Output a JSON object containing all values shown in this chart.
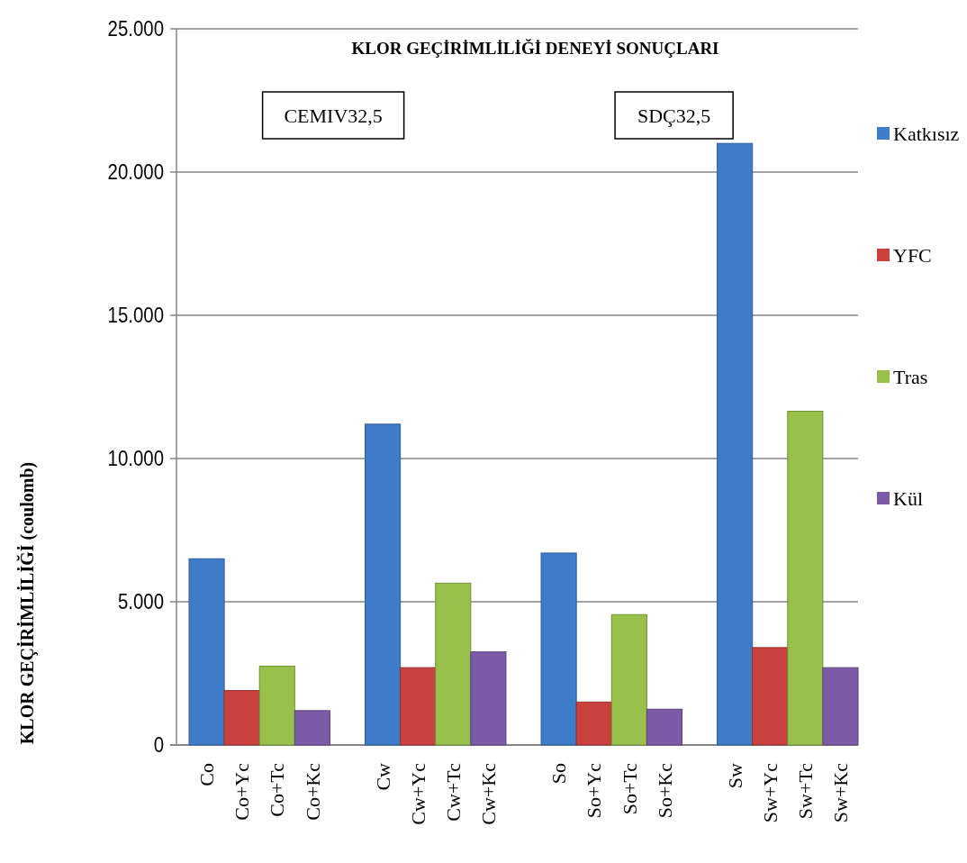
{
  "chart_data": {
    "type": "bar",
    "title": "KLOR GEÇİRİMLİLİĞİ DENEYİ SONUÇLARI",
    "ylabel": "KLOR GEÇİRİMLİLİĞİ (coulomb)",
    "annotations": [
      "CEMIV32,5",
      "SDÇ32,5"
    ],
    "categories": [
      "Co",
      "Co+Yc",
      "Co+Tc",
      "Co+Kc",
      null,
      "Cw",
      "Cw+Yc",
      "Cw+Tc",
      "Cw+Kc",
      null,
      "So",
      "So+Yc",
      "So+Tc",
      "So+Kc",
      null,
      "Sw",
      "Sw+Yc",
      "Sw+Tc",
      "Sw+Kc"
    ],
    "series": [
      {
        "name": "Katkısız",
        "color": "#3d7cc9",
        "values": [
          6500,
          null,
          null,
          null,
          null,
          11200,
          null,
          null,
          null,
          null,
          6700,
          null,
          null,
          null,
          null,
          21000,
          null,
          null,
          null
        ]
      },
      {
        "name": "YFC",
        "color": "#c9403c",
        "values": [
          null,
          1900,
          null,
          null,
          null,
          null,
          2700,
          null,
          null,
          null,
          null,
          1500,
          null,
          null,
          null,
          null,
          3400,
          null,
          null
        ]
      },
      {
        "name": "Tras",
        "color": "#98c04a",
        "values": [
          null,
          null,
          2750,
          null,
          null,
          null,
          null,
          5650,
          null,
          null,
          null,
          null,
          4550,
          null,
          null,
          null,
          null,
          11650,
          null
        ]
      },
      {
        "name": "Kül",
        "color": "#7b5aa6",
        "values": [
          null,
          null,
          null,
          1200,
          null,
          null,
          null,
          null,
          3250,
          null,
          null,
          null,
          null,
          1250,
          null,
          null,
          null,
          null,
          2700
        ]
      }
    ],
    "ylim": [
      0,
      25000
    ],
    "yticks": [
      0,
      {
        "value": 5000,
        "label": "5.000"
      },
      {
        "value": 10000,
        "label": "10.000"
      },
      {
        "value": 15000,
        "label": "15.000"
      },
      {
        "value": 20000,
        "label": "20.000"
      },
      {
        "value": 25000,
        "label": "25.000"
      }
    ],
    "grid": "y",
    "legend": "right"
  }
}
